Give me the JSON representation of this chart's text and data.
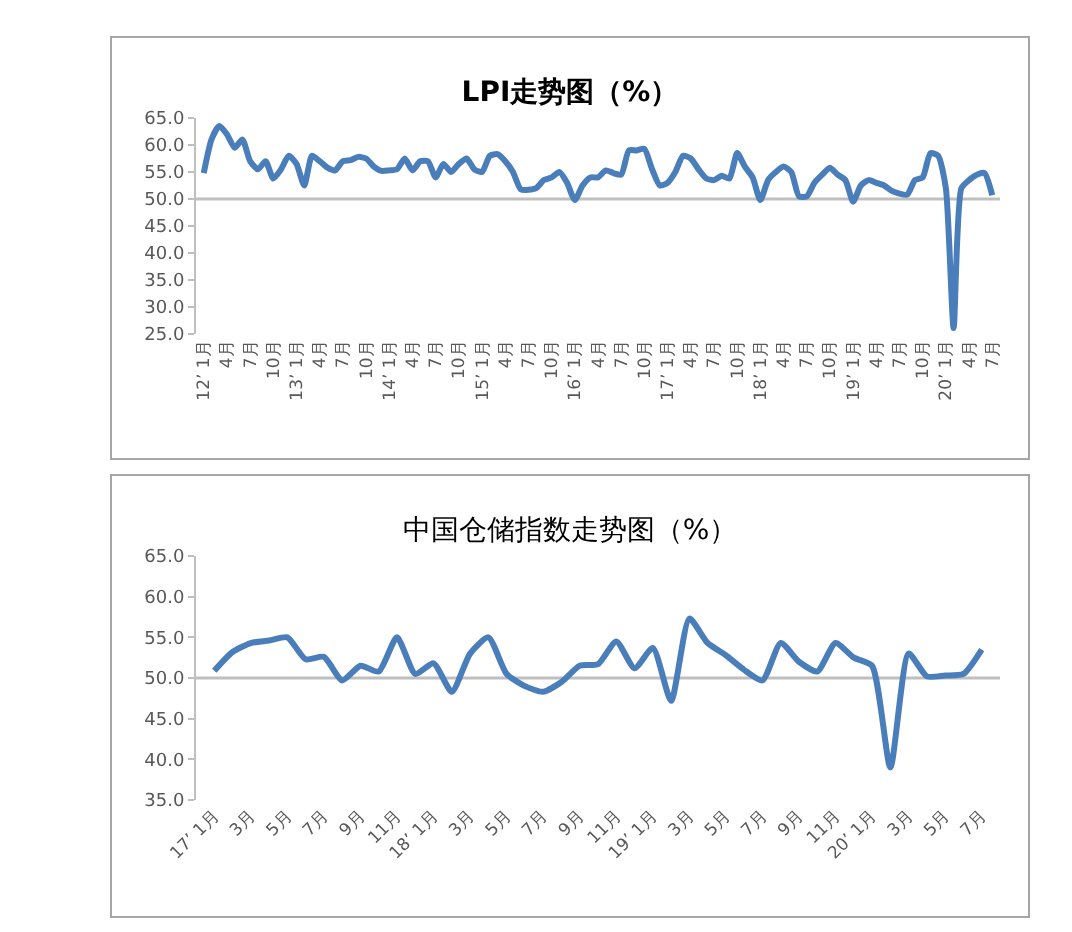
{
  "chart_data": [
    {
      "type": "line",
      "title": "LPI走势图（%）",
      "categories": [
        "12’ 1月",
        null,
        null,
        "4月",
        null,
        null,
        "7月",
        null,
        null,
        "10月",
        null,
        null,
        "13’ 1月",
        null,
        null,
        "4月",
        null,
        null,
        "7月",
        null,
        null,
        "10月",
        null,
        null,
        "14’ 1月",
        null,
        null,
        "4月",
        null,
        null,
        "7月",
        null,
        null,
        "10月",
        null,
        null,
        "15’ 1月",
        null,
        null,
        "4月",
        null,
        null,
        "7月",
        null,
        null,
        "10月",
        null,
        null,
        "16’ 1月",
        null,
        null,
        "4月",
        null,
        null,
        "7月",
        null,
        null,
        "10月",
        null,
        null,
        "17’ 1月",
        null,
        null,
        "4月",
        null,
        null,
        "7月",
        null,
        null,
        "10月",
        null,
        null,
        "18’ 1月",
        null,
        null,
        "4月",
        null,
        null,
        "7月",
        null,
        null,
        "10月",
        null,
        null,
        "19’ 1月",
        null,
        null,
        "4月",
        null,
        null,
        "7月",
        null,
        null,
        "10月",
        null,
        null,
        "20’ 1月",
        null,
        null,
        "4月",
        null,
        null,
        "7月"
      ],
      "series": [
        {
          "color": "#4a7ebb",
          "values": [
            54.8,
            61,
            63.5,
            62,
            59.5,
            61,
            57,
            55.5,
            57,
            53.8,
            55.5,
            58,
            56.5,
            52.5,
            58,
            57,
            55.8,
            55.3,
            57,
            57.2,
            57.8,
            57.5,
            56,
            55.2,
            55.3,
            55.5,
            57.5,
            55.3,
            57,
            57,
            54,
            56.5,
            55,
            56.5,
            57.5,
            55.5,
            55,
            58,
            58.3,
            57,
            55,
            51.8,
            51.7,
            52,
            53.5,
            54,
            55,
            53,
            49.8,
            52.5,
            54,
            54,
            55.3,
            54.8,
            54.5,
            59,
            59,
            59.3,
            55.5,
            52.5,
            53,
            55,
            58,
            57.5,
            55.5,
            53.8,
            53.5,
            54.3,
            53.8,
            58.5,
            56,
            54,
            49.8,
            53.5,
            55,
            56,
            55,
            50.5,
            50.5,
            53,
            54.5,
            55.8,
            54.5,
            53.5,
            49.5,
            52.5,
            53.5,
            53,
            52.5,
            51.5,
            51,
            50.8,
            53.5,
            54,
            58.5,
            58,
            52,
            26.1,
            52,
            53.5,
            54.5,
            54.8,
            50.7
          ]
        }
      ],
      "ylim": [
        25,
        65
      ],
      "yticks": [
        {
          "value": 25,
          "label": "25.0"
        },
        {
          "value": 30,
          "label": "30.0"
        },
        {
          "value": 35,
          "label": "35.0"
        },
        {
          "value": 40,
          "label": "40.0"
        },
        {
          "value": 45,
          "label": "45.0"
        },
        {
          "value": 50,
          "label": "50.0"
        },
        {
          "value": 55,
          "label": "55.0"
        },
        {
          "value": 60,
          "label": "60.0"
        },
        {
          "value": 65,
          "label": "65.0"
        }
      ],
      "ref_lines": [
        {
          "axis": "y",
          "value": 50,
          "color": "#bfbfbf"
        }
      ],
      "grid": false,
      "marker": "none",
      "line_style": "solid"
    },
    {
      "type": "line",
      "title": "中国仓储指数走势图（%）",
      "categories": [
        "17’ 1月",
        null,
        "3月",
        null,
        "5月",
        null,
        "7月",
        null,
        "9月",
        null,
        "11月",
        null,
        "18’ 1月",
        null,
        "3月",
        null,
        "5月",
        null,
        "7月",
        null,
        "9月",
        null,
        "11月",
        null,
        "19’ 1月",
        null,
        "3月",
        null,
        "5月",
        null,
        "7月",
        null,
        "9月",
        null,
        "11月",
        null,
        "20’ 1月",
        null,
        "3月",
        null,
        "5月",
        null,
        "7月"
      ],
      "series": [
        {
          "color": "#4a7ebb",
          "values": [
            50.9,
            53.2,
            54.3,
            54.6,
            55,
            52.3,
            52.6,
            49.7,
            51.5,
            50.8,
            55,
            50.5,
            51.8,
            48.3,
            53,
            55,
            50.5,
            49,
            48.3,
            49.5,
            51.5,
            51.7,
            54.5,
            51.2,
            53.7,
            47.2,
            57.3,
            54.3,
            52.8,
            51,
            49.7,
            54.3,
            52,
            50.8,
            54.3,
            52.5,
            51.5,
            39,
            53,
            50.2,
            50.3,
            50.5,
            53.5
          ]
        }
      ],
      "ylim": [
        35,
        65
      ],
      "yticks": [
        {
          "value": 35,
          "label": "35.0"
        },
        {
          "value": 40,
          "label": "40.0"
        },
        {
          "value": 45,
          "label": "45.0"
        },
        {
          "value": 50,
          "label": "50.0"
        },
        {
          "value": 55,
          "label": "55.0"
        },
        {
          "value": 60,
          "label": "60.0"
        },
        {
          "value": 65,
          "label": "65.0"
        }
      ],
      "ref_lines": [
        {
          "axis": "y",
          "value": 50,
          "color": "#bfbfbf"
        }
      ],
      "grid": false,
      "marker": "none",
      "line_style": "solid"
    }
  ]
}
